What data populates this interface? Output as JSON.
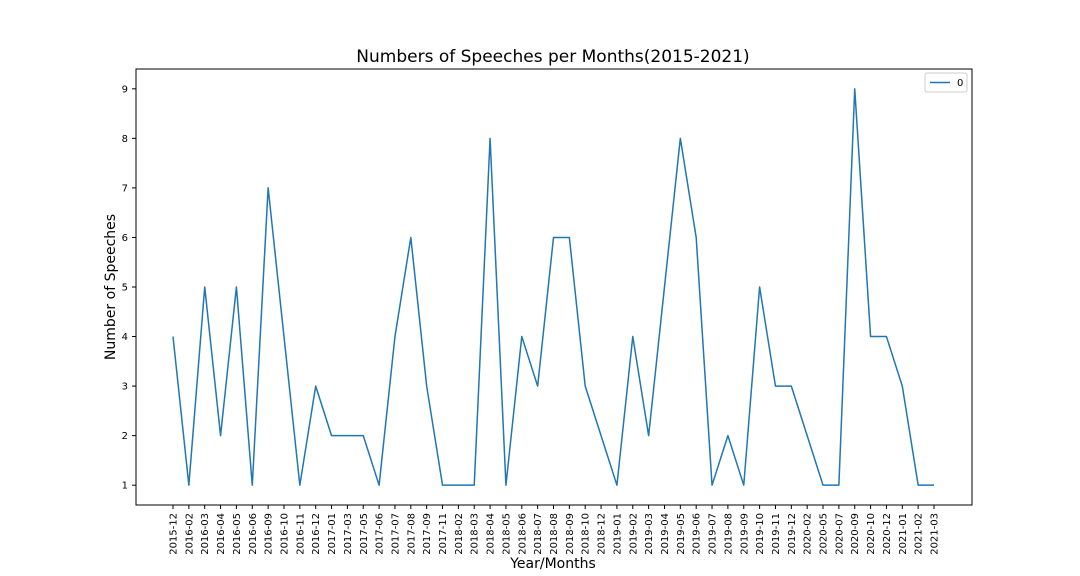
{
  "chart_data": {
    "type": "line",
    "title": "Numbers of Speeches per Months(2015-2021)",
    "xlabel": "Year/Months",
    "ylabel": "Number of Speeches",
    "categories": [
      "2015-12",
      "2016-02",
      "2016-03",
      "2016-04",
      "2016-05",
      "2016-06",
      "2016-09",
      "2016-10",
      "2016-11",
      "2016-12",
      "2017-01",
      "2017-03",
      "2017-05",
      "2017-06",
      "2017-07",
      "2017-08",
      "2017-09",
      "2017-11",
      "2018-02",
      "2018-03",
      "2018-04",
      "2018-05",
      "2018-06",
      "2018-07",
      "2018-08",
      "2018-09",
      "2018-10",
      "2018-12",
      "2019-01",
      "2019-02",
      "2019-03",
      "2019-04",
      "2019-05",
      "2019-06",
      "2019-07",
      "2019-08",
      "2019-09",
      "2019-10",
      "2019-11",
      "2019-12",
      "2020-02",
      "2020-05",
      "2020-07",
      "2020-09",
      "2020-10",
      "2020-12",
      "2021-01",
      "2021-02",
      "2021-03"
    ],
    "series": [
      {
        "name": "0",
        "color": "#1f77b4",
        "values": [
          4,
          1,
          5,
          2,
          5,
          1,
          7,
          4,
          1,
          3,
          2,
          2,
          2,
          1,
          4,
          6,
          3,
          1,
          1,
          1,
          8,
          1,
          4,
          3,
          6,
          6,
          3,
          2,
          1,
          4,
          2,
          5,
          8,
          6,
          1,
          2,
          1,
          5,
          3,
          3,
          2,
          1,
          1,
          9,
          4,
          4,
          3,
          1,
          1
        ]
      }
    ],
    "yticks": [
      1,
      2,
      3,
      4,
      5,
      6,
      7,
      8,
      9
    ],
    "ylim": [
      0.6,
      9.4
    ],
    "legend": "top-right",
    "grid": false
  }
}
